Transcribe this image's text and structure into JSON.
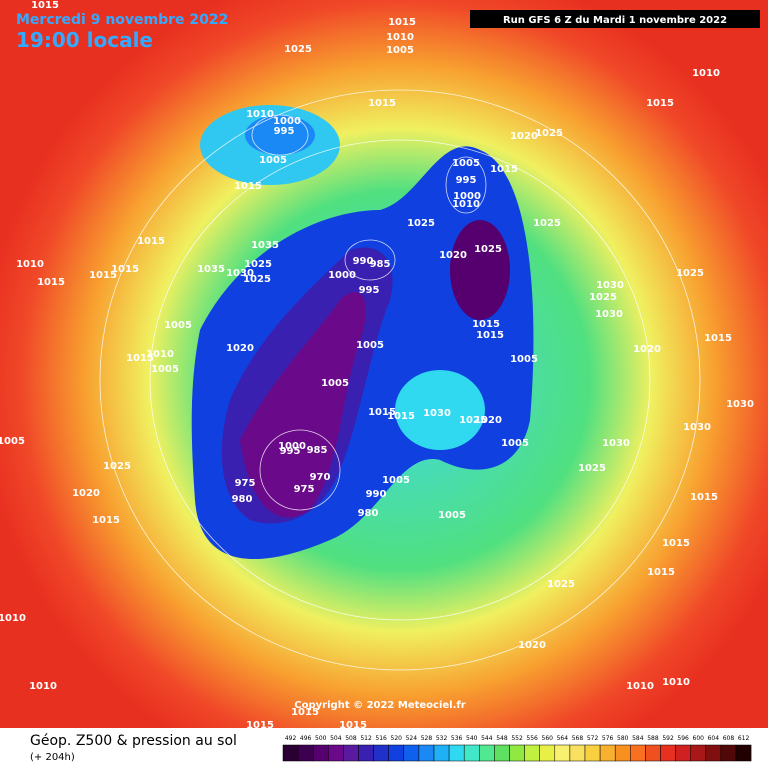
{
  "header": {
    "date": "Mercredi 9 novembre 2022",
    "time": "19:00 locale",
    "run": "Run GFS 6 Z du Mardi 1 novembre 2022"
  },
  "footer": {
    "title": "Géop. Z500 & pression au sol",
    "forecast": "(+ 204h)",
    "copyright": "Copyright © 2022 Meteociel.fr"
  },
  "legend": {
    "values": [
      492,
      496,
      500,
      504,
      508,
      512,
      516,
      520,
      524,
      528,
      532,
      536,
      540,
      544,
      548,
      552,
      556,
      560,
      564,
      568,
      572,
      576,
      580,
      584,
      588,
      592,
      596,
      600,
      604,
      608,
      612
    ],
    "colors": [
      "#2a0033",
      "#3d0050",
      "#55006e",
      "#6a0a8a",
      "#5a1aa0",
      "#3a20b0",
      "#2030c8",
      "#1040e0",
      "#1060f0",
      "#1a88f5",
      "#20b0f5",
      "#30d8f0",
      "#40e8c8",
      "#50e890",
      "#60e060",
      "#90e840",
      "#c0f040",
      "#e8f048",
      "#f8f070",
      "#f8e060",
      "#f8d040",
      "#f8b030",
      "#f89020",
      "#f87020",
      "#f05020",
      "#e83020",
      "#d02020",
      "#a81818",
      "#801010",
      "#500808",
      "#200000"
    ]
  },
  "map": {
    "pressure_labels": [
      "1015",
      "1015",
      "1010",
      "1005",
      "1025",
      "1010",
      "1015",
      "1015",
      "1010",
      "1000",
      "995",
      "1020",
      "1025",
      "1005",
      "1005",
      "995",
      "1015",
      "1000",
      "1010",
      "1015",
      "1015",
      "1035",
      "1025",
      "1025",
      "1020",
      "1025",
      "990",
      "985",
      "1000",
      "1025",
      "1030",
      "1035",
      "1025",
      "1010",
      "1015",
      "1015",
      "1015",
      "995",
      "1025",
      "1030",
      "1025",
      "1030",
      "1005",
      "1015",
      "1015",
      "1020",
      "1005",
      "1005",
      "1010",
      "1015",
      "1005",
      "1020",
      "1015",
      "1005",
      "1030",
      "1015",
      "1015",
      "1030",
      "1025",
      "1020",
      "1005",
      "1030",
      "995",
      "985",
      "1000",
      "975",
      "980",
      "975",
      "970",
      "990",
      "980",
      "1005",
      "1005",
      "1030",
      "1025",
      "1005",
      "1025",
      "1020",
      "1015",
      "1015",
      "1015",
      "1015",
      "1025",
      "1020",
      "1010",
      "1010",
      "1010",
      "1010",
      "1015",
      "1015",
      "1015"
    ]
  }
}
